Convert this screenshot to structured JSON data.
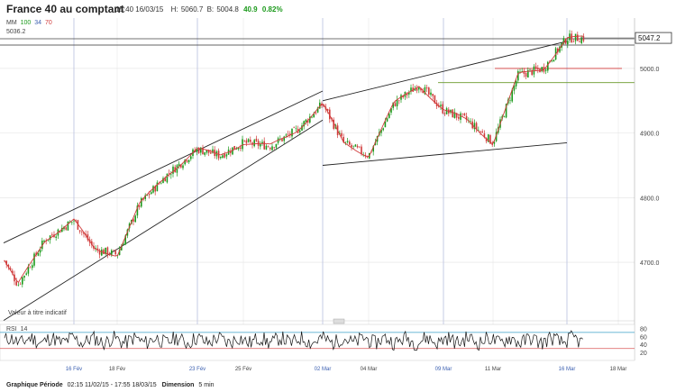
{
  "header": {
    "title": "France 40 au comptant",
    "datetime": "15:40 16/03/15",
    "high_label": "H:",
    "high": "5060.7",
    "low_label": "B:",
    "low": "5004.8",
    "change": "40.9",
    "change_pct": "0.82%"
  },
  "legend": {
    "mm_label": "MM",
    "mm_periods": [
      "100",
      "34",
      "70"
    ],
    "mm_colors": [
      "#1c9a1c",
      "#3b5fb0",
      "#d03a3a"
    ],
    "level_value": "5036.2",
    "note": "Valeur à titre indicatif",
    "rsi_label": "RSI",
    "rsi_period": "14"
  },
  "footer": {
    "label1": "Graphique Période",
    "period": "02:15 11/02/15 - 17:55 18/03/15",
    "label2": "Dimension",
    "dimension": "5 min"
  },
  "chart_data": [
    {
      "type": "candlestick",
      "y_ticks": [
        4700.0,
        4800.0,
        4900.0,
        5000.0
      ],
      "y_tick_labels": [
        "4700.0",
        "4800.0",
        "4900.0",
        "5000.0"
      ],
      "ylim": [
        4615,
        5078
      ],
      "last_price": 5047.2,
      "last_price_label": "5047.2",
      "x_labels": [
        "16 Fév",
        "18 Fév",
        "23 Fév",
        "25 Fév",
        "02 Mar",
        "04 Mar",
        "09 Mar",
        "11 Mar",
        "16 Mar",
        "18 Mar"
      ],
      "x_label_blue": [
        "16 Fév",
        "23 Fév",
        "02 Mar",
        "09 Mar",
        "16 Mar"
      ],
      "price_path": [
        [
          "11 Feb",
          4705
        ],
        [
          "12 Feb",
          4665
        ],
        [
          "13 Feb",
          4735
        ],
        [
          "16 Feb",
          4765
        ],
        [
          "17 Feb",
          4720
        ],
        [
          "18 Feb",
          4712
        ],
        [
          "19 Feb",
          4790
        ],
        [
          "20 Feb",
          4835
        ],
        [
          "23 Feb",
          4875
        ],
        [
          "24 Feb",
          4865
        ],
        [
          "25 Feb",
          4885
        ],
        [
          "26 Feb",
          4880
        ],
        [
          "27 Feb",
          4905
        ],
        [
          "02 Mar",
          4945
        ],
        [
          "03 Mar",
          4885
        ],
        [
          "04 Mar",
          4865
        ],
        [
          "05 Mar",
          4945
        ],
        [
          "06 Mar",
          4975
        ],
        [
          "09 Mar",
          4935
        ],
        [
          "10 Mar",
          4920
        ],
        [
          "11 Mar",
          4885
        ],
        [
          "12 Mar",
          4990
        ],
        [
          "13 Mar",
          5000
        ],
        [
          "16 Mar",
          5047
        ]
      ],
      "moving_average": {
        "color": "#d03a3a"
      },
      "horizontal_levels": [
        {
          "value": 5036.2,
          "color": "#333333"
        },
        {
          "value": 5000.0,
          "color": "#d03a3a"
        },
        {
          "value": 4978.0,
          "color": "#6a9a2a"
        }
      ],
      "trendlines": [
        {
          "from": [
            "11 Feb",
            4730
          ],
          "to": [
            "02 Mar",
            4965
          ]
        },
        {
          "from": [
            "11 Feb",
            4610
          ],
          "to": [
            "02 Mar",
            4920
          ]
        },
        {
          "from": [
            "02 Mar",
            4950
          ],
          "to": [
            "16 Mar",
            5042
          ]
        },
        {
          "from": [
            "02 Mar",
            4850
          ],
          "to": [
            "16 Mar",
            4885
          ]
        }
      ],
      "candle_colors": {
        "up": "#1c9a1c",
        "down": "#d03a3a"
      }
    },
    {
      "type": "line",
      "title": "RSI 14",
      "y_ticks": [
        20,
        40,
        60,
        80
      ],
      "ylim": [
        0,
        90
      ],
      "levels": [
        {
          "value": 70,
          "color": "#3aa0c8"
        },
        {
          "value": 30,
          "color": "#e07070"
        }
      ],
      "oscillation_range": [
        30,
        70
      ]
    }
  ]
}
